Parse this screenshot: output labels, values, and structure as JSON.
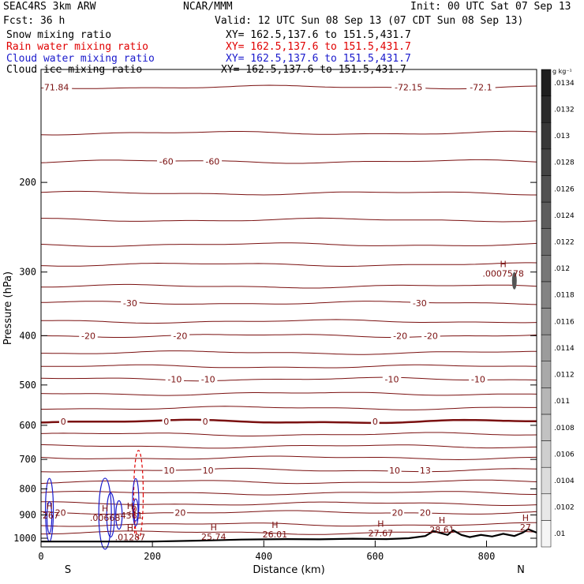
{
  "header": {
    "model": "SEAC4RS  3km ARW",
    "forecast": "Fcst:   36 h",
    "center": "NCAR/MMM",
    "init": "Init: 00 UTC Sat 07 Sep 13",
    "valid": "Valid: 12 UTC Sun 08 Sep 13 (07 CDT Sun 08 Sep 13)"
  },
  "fields": [
    {
      "name": "Snow mixing ratio",
      "xy": "XY= 162.5,137.6 to 151.5,431.7",
      "color": "#000000"
    },
    {
      "name": "Rain water mixing ratio",
      "xy": "XY= 162.5,137.6 to 151.5,431.7",
      "color": "#e00000"
    },
    {
      "name": "Cloud water mixing ratio",
      "xy": "XY= 162.5,137.6 to 151.5,431.7",
      "color": "#1a1acc"
    },
    {
      "name": "Cloud ice mixing ratio",
      "xy": "XY= 162.5,137.6 to 151.5,431.7",
      "color": "#000000"
    }
  ],
  "chart_data": {
    "type": "cross-section",
    "xlabel": "Distance (km)",
    "ylabel": "Pressure (hPa)",
    "xlim": [
      0,
      890
    ],
    "ylim": [
      1040,
      120
    ],
    "y_scale": "log",
    "x_ticks": [
      0,
      200,
      400,
      600,
      800
    ],
    "y_ticks": [
      200,
      300,
      400,
      500,
      600,
      700,
      800,
      900,
      1000
    ],
    "x_end_labels": {
      "left": "S",
      "right": "N"
    },
    "contour_color": "#7a1010",
    "isotherms": [
      {
        "p": 130,
        "labels": [
          {
            "x": 25,
            "t": "-71.84"
          },
          {
            "x": 660,
            "t": "-72.15"
          },
          {
            "x": 790,
            "t": "-72.1"
          }
        ]
      },
      {
        "p": 160,
        "labels": []
      },
      {
        "p": 182,
        "labels": [
          {
            "x": 225,
            "t": "-60"
          },
          {
            "x": 308,
            "t": "-60"
          }
        ]
      },
      {
        "p": 210,
        "labels": []
      },
      {
        "p": 237,
        "labels": []
      },
      {
        "p": 265,
        "labels": []
      },
      {
        "p": 290,
        "labels": []
      },
      {
        "p": 320,
        "labels": []
      },
      {
        "p": 345,
        "labels": [
          {
            "x": 160,
            "t": "-30"
          },
          {
            "x": 680,
            "t": "-30"
          }
        ]
      },
      {
        "p": 375,
        "labels": []
      },
      {
        "p": 400,
        "labels": [
          {
            "x": 85,
            "t": "-20"
          },
          {
            "x": 250,
            "t": "-20"
          },
          {
            "x": 645,
            "t": "-20"
          },
          {
            "x": 700,
            "t": "-20"
          }
        ]
      },
      {
        "p": 432,
        "labels": []
      },
      {
        "p": 460,
        "labels": []
      },
      {
        "p": 487,
        "labels": [
          {
            "x": 240,
            "t": "-10"
          },
          {
            "x": 300,
            "t": "-10"
          },
          {
            "x": 630,
            "t": "-10"
          },
          {
            "x": 785,
            "t": "-10"
          }
        ]
      },
      {
        "p": 520,
        "labels": []
      },
      {
        "p": 555,
        "labels": []
      },
      {
        "p": 590,
        "labels": [
          {
            "x": 40,
            "t": "0"
          },
          {
            "x": 225,
            "t": "0"
          },
          {
            "x": 295,
            "t": "0"
          },
          {
            "x": 600,
            "t": "0"
          }
        ],
        "bold": true
      },
      {
        "p": 625,
        "labels": []
      },
      {
        "p": 660,
        "labels": []
      },
      {
        "p": 695,
        "labels": []
      },
      {
        "p": 735,
        "labels": [
          {
            "x": 230,
            "t": "10"
          },
          {
            "x": 300,
            "t": "10"
          },
          {
            "x": 635,
            "t": "10"
          },
          {
            "x": 690,
            "t": "13"
          }
        ]
      },
      {
        "p": 775,
        "labels": []
      },
      {
        "p": 815,
        "labels": []
      },
      {
        "p": 855,
        "labels": []
      },
      {
        "p": 890,
        "labels": [
          {
            "x": 35,
            "t": "20"
          },
          {
            "x": 250,
            "t": "20"
          },
          {
            "x": 640,
            "t": "20"
          },
          {
            "x": 690,
            "t": "20"
          }
        ]
      },
      {
        "p": 940,
        "labels": []
      },
      {
        "p": 975,
        "labels": []
      }
    ],
    "extrema": [
      {
        "x": 830,
        "p": 300,
        "h": "H",
        "v": ".0007578"
      },
      {
        "x": 115,
        "p": 905,
        "h": "H",
        "v": ".00668"
      },
      {
        "x": 160,
        "p": 895,
        "h": "H",
        "v": ".4361"
      },
      {
        "x": 160,
        "p": 988,
        "h": "H",
        "v": ".01287"
      },
      {
        "x": 310,
        "p": 985,
        "h": "H",
        "v": "25.74"
      },
      {
        "x": 420,
        "p": 975,
        "h": "H",
        "v": "26.01"
      },
      {
        "x": 610,
        "p": 970,
        "h": "H",
        "v": "27.67"
      },
      {
        "x": 720,
        "p": 955,
        "h": "H",
        "v": "28.61"
      },
      {
        "x": 870,
        "p": 945,
        "h": "H",
        "v": "27"
      },
      {
        "x": 15,
        "p": 895,
        "h": "H",
        "v": ".267"
      },
      {
        "x": 165,
        "p": 870,
        "h": "",
        "v": ".0"
      }
    ],
    "terrain": [
      [
        0,
        1015
      ],
      [
        100,
        1015
      ],
      [
        200,
        1015
      ],
      [
        300,
        1010
      ],
      [
        360,
        1006
      ],
      [
        440,
        1004
      ],
      [
        500,
        1005
      ],
      [
        560,
        1002
      ],
      [
        620,
        1004
      ],
      [
        660,
        1000
      ],
      [
        690,
        990
      ],
      [
        705,
        968
      ],
      [
        715,
        975
      ],
      [
        730,
        985
      ],
      [
        740,
        965
      ],
      [
        755,
        985
      ],
      [
        770,
        995
      ],
      [
        790,
        985
      ],
      [
        810,
        992
      ],
      [
        830,
        980
      ],
      [
        850,
        990
      ],
      [
        865,
        975
      ],
      [
        875,
        960
      ],
      [
        885,
        970
      ],
      [
        890,
        975
      ]
    ],
    "colorbar": {
      "unit": "g kg⁻¹",
      "ticks": [
        ".01",
        ".0102",
        ".0104",
        ".0106",
        ".0108",
        ".011",
        ".0112",
        ".0114",
        ".0116",
        ".0118",
        ".012",
        ".0122",
        ".0124",
        ".0126",
        ".0128",
        ".013",
        ".0132",
        ".0134"
      ]
    }
  }
}
